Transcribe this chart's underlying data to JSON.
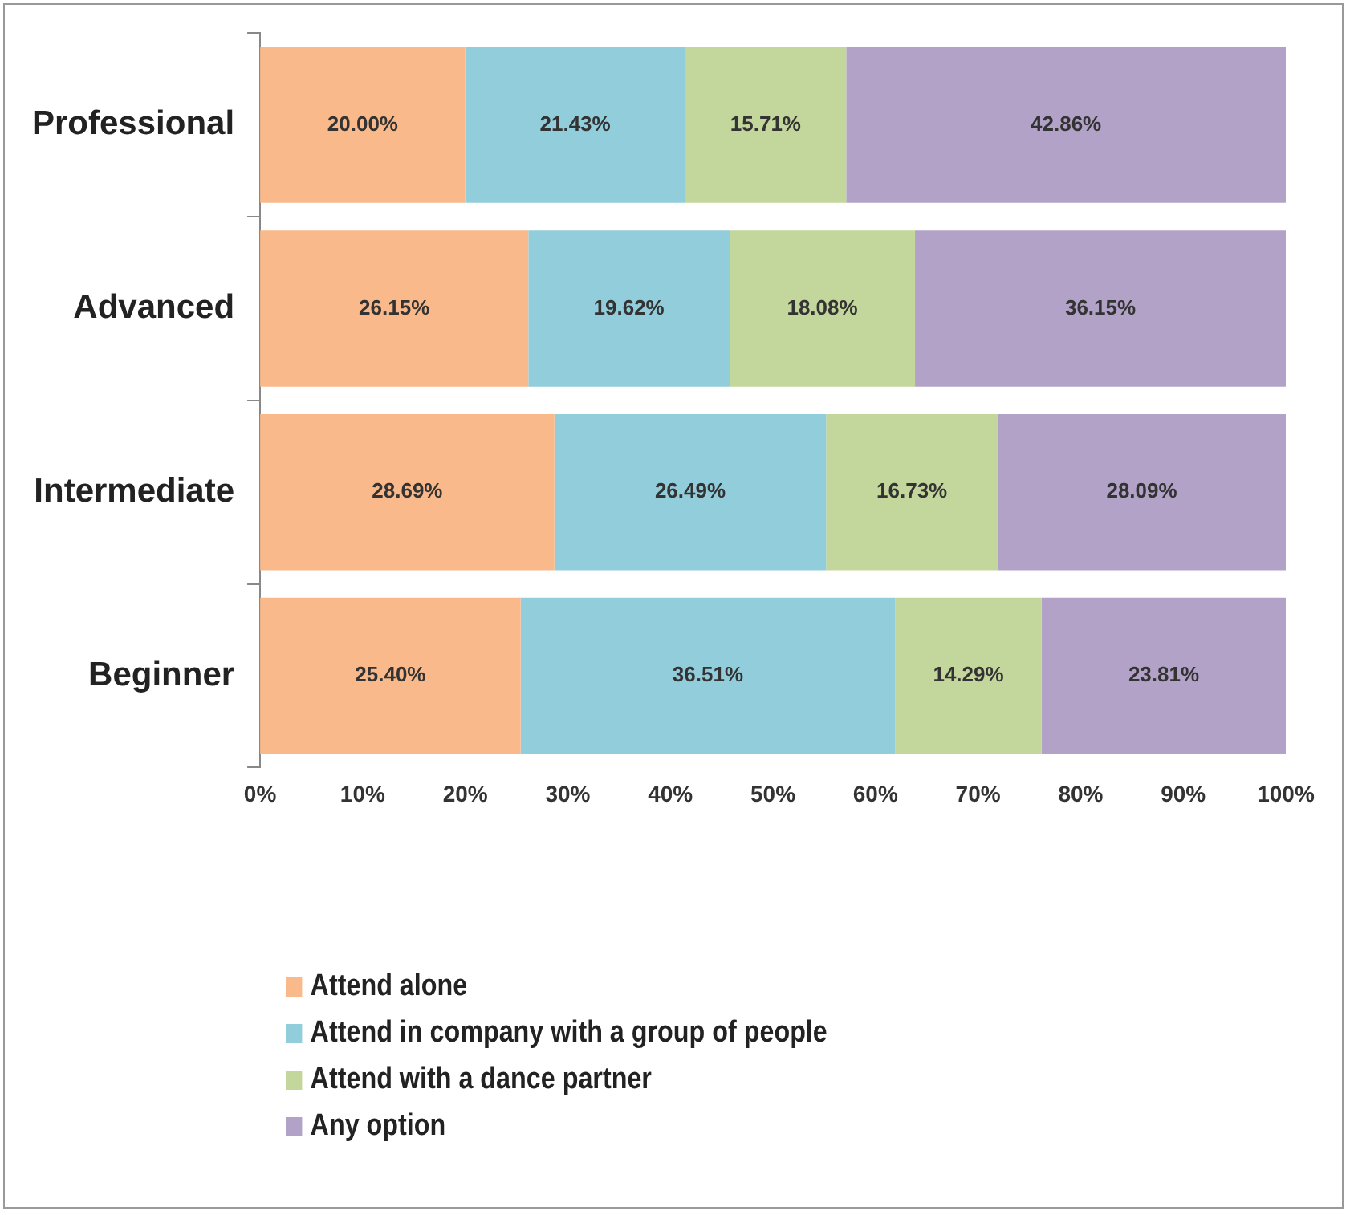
{
  "chart_data": {
    "type": "bar",
    "orientation": "horizontal",
    "stacked": true,
    "categories": [
      "Professional",
      "Advanced",
      "Intermediate",
      "Beginner"
    ],
    "series": [
      {
        "name": "Attend alone",
        "color": "#f9b98a",
        "values": [
          20.0,
          26.15,
          28.69,
          25.4
        ],
        "value_labels": [
          "20.00%",
          "26.15%",
          "28.69%",
          "25.40%"
        ]
      },
      {
        "name": "Attend in company with a group of people",
        "color": "#92cddc",
        "values": [
          21.43,
          19.62,
          26.49,
          36.51
        ],
        "value_labels": [
          "21.43%",
          "19.62%",
          "26.49%",
          "36.51%"
        ]
      },
      {
        "name": "Attend with a dance partner",
        "color": "#c3d69b",
        "values": [
          15.71,
          18.08,
          16.73,
          14.29
        ],
        "value_labels": [
          "15.71%",
          "18.08%",
          "16.73%",
          "14.29%"
        ]
      },
      {
        "name": "Any option",
        "color": "#b3a2c7",
        "values": [
          42.86,
          36.15,
          28.09,
          23.81
        ],
        "value_labels": [
          "42.86%",
          "36.15%",
          "28.09%",
          "23.81%"
        ]
      }
    ],
    "xlim": [
      0,
      100
    ],
    "xticks": [
      {
        "value": 0,
        "label": "0%"
      },
      {
        "value": 10,
        "label": "10%"
      },
      {
        "value": 20,
        "label": "20%"
      },
      {
        "value": 30,
        "label": "30%"
      },
      {
        "value": 40,
        "label": "40%"
      },
      {
        "value": 50,
        "label": "50%"
      },
      {
        "value": 60,
        "label": "60%"
      },
      {
        "value": 70,
        "label": "70%"
      },
      {
        "value": 80,
        "label": "80%"
      },
      {
        "value": 90,
        "label": "90%"
      },
      {
        "value": 100,
        "label": "100%"
      }
    ],
    "grid": false,
    "legend": "bottom left"
  }
}
